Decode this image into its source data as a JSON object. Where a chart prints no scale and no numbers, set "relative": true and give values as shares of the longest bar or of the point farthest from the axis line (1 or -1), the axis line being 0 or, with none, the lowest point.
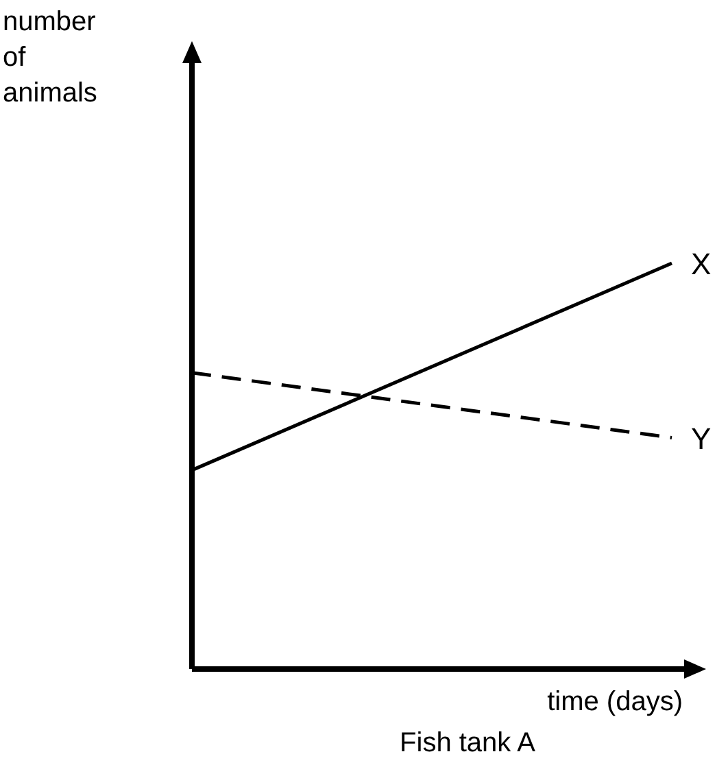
{
  "chart_data": {
    "type": "line",
    "relative": true,
    "title": "Fish tank A",
    "xlabel": "time (days)",
    "annotations": [
      "number of animals"
    ],
    "categories": [
      null,
      null
    ],
    "legend": false,
    "grid": false,
    "marker": "none",
    "series": [
      {
        "name": "X",
        "color": "#000000",
        "line_style": "solid",
        "values": [
          0.49,
          1
        ]
      },
      {
        "name": "Y",
        "color": "#000000",
        "line_style": "dashed",
        "values": [
          0.73,
          0.57
        ]
      }
    ]
  }
}
